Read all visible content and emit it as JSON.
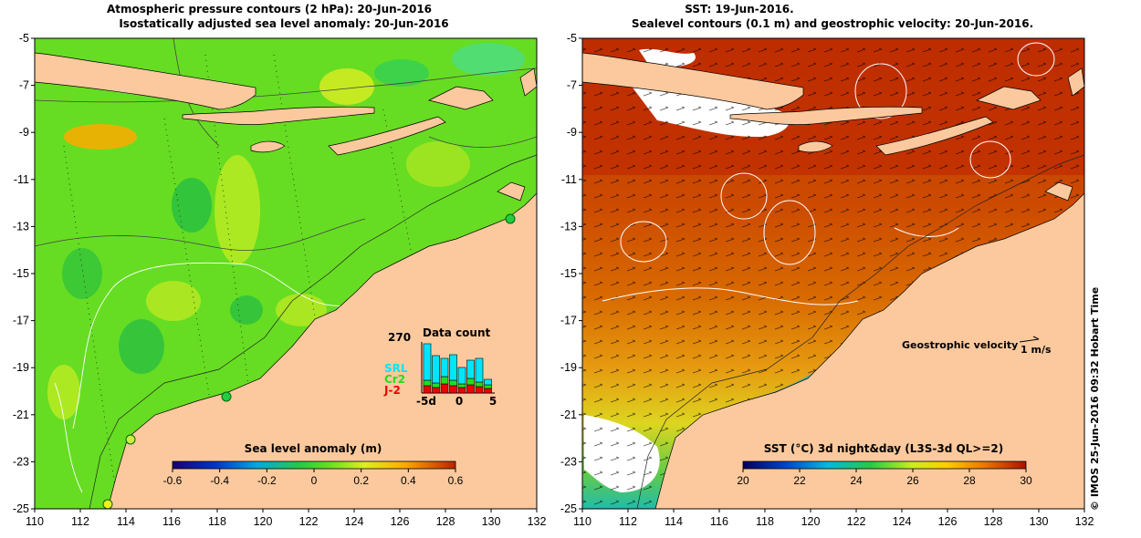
{
  "left_panel": {
    "title_line1": "Atmospheric pressure contours (2 hPa): 20-Jun-2016",
    "title_line2": "Isostatically adjusted sea level anomaly: 20-Jun-2016",
    "colorbar": {
      "title": "Sea level anomaly (m)",
      "ticks": [
        "-0.6",
        "-0.4",
        "-0.2",
        "0",
        "0.2",
        "0.4",
        "0.6"
      ],
      "range": [
        -0.6,
        0.6
      ]
    },
    "data_count": {
      "title": "Data count",
      "max_label": "270",
      "x_ticks": [
        "-5d",
        "0",
        "5"
      ],
      "satellites": [
        {
          "name": "SRL",
          "color": "#00e5ff"
        },
        {
          "name": "Cr2",
          "color": "#22dd22"
        },
        {
          "name": "J-2",
          "color": "#ee0000"
        }
      ]
    }
  },
  "right_panel": {
    "title_line1": "SST: 19-Jun-2016.",
    "title_line2": "Sealevel contours (0.1 m) and geostrophic velocity: 20-Jun-2016.",
    "colorbar": {
      "title": "SST (°C) 3d night&day (L3S-3d QL>=2)",
      "ticks": [
        "20",
        "22",
        "24",
        "26",
        "28",
        "30"
      ],
      "range": [
        20,
        30
      ]
    },
    "velocity_legend": {
      "label": "Geostrophic velocity",
      "scale": "1 m/s"
    }
  },
  "axes": {
    "lon_ticks": [
      "110",
      "112",
      "114",
      "116",
      "118",
      "120",
      "122",
      "124",
      "126",
      "128",
      "130",
      "132"
    ],
    "lat_ticks": [
      "-5",
      "-7",
      "-9",
      "-11",
      "-13",
      "-15",
      "-17",
      "-19",
      "-21",
      "-23",
      "-25"
    ],
    "lon_range": [
      110,
      132
    ],
    "lat_range": [
      -25,
      -5
    ]
  },
  "credit": "© IMOS 25-Jun-2016 09:32 Hobart Time",
  "colors": {
    "land": "#fbc99d",
    "sla_ocean": "#66dd22",
    "sst_ocean": "#cc4400"
  }
}
